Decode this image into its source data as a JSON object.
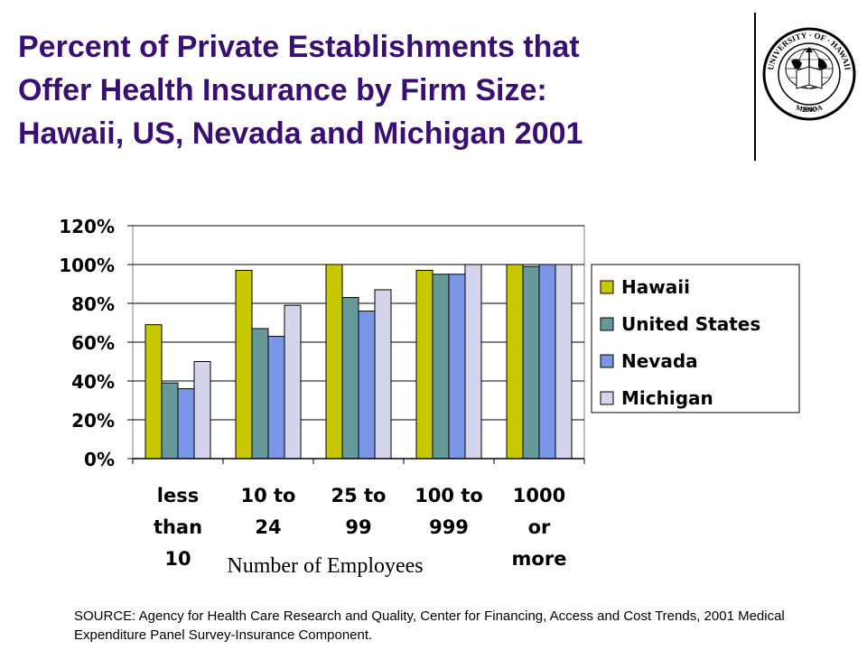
{
  "title": {
    "line1": "Percent of Private Establishments that",
    "line2": "Offer Health Insurance by Firm Size:",
    "line3": "Hawaii, US, Nevada and Michigan 2001"
  },
  "seal": {
    "top_text": "UNIVERSITY · OF · HAWAII",
    "year": "1907",
    "bottom_text": "MANOA",
    "book_text": "MAMA LAMA"
  },
  "chart_data": {
    "type": "bar",
    "categories": [
      [
        "less",
        "than",
        "10"
      ],
      [
        "10 to",
        "24"
      ],
      [
        "25 to",
        "99"
      ],
      [
        "100 to",
        "999"
      ],
      [
        "1000",
        "or",
        "more"
      ]
    ],
    "xlabel": "Number of Employees",
    "ylabel": "",
    "ylim": [
      0,
      120
    ],
    "yticks": [
      0,
      20,
      40,
      60,
      80,
      100,
      120
    ],
    "ytick_labels": [
      "0%",
      "20%",
      "40%",
      "60%",
      "80%",
      "100%",
      "120%"
    ],
    "legend_position": "right",
    "series": [
      {
        "name": "Hawaii",
        "color": "#c8c800",
        "values": [
          69,
          97,
          100,
          97,
          100
        ]
      },
      {
        "name": "United States",
        "color": "#669999",
        "values": [
          39,
          67,
          83,
          95,
          99
        ]
      },
      {
        "name": "Nevada",
        "color": "#7b96e6",
        "values": [
          36,
          63,
          76,
          95,
          100
        ]
      },
      {
        "name": "Michigan",
        "color": "#d4d4ec",
        "values": [
          50,
          79,
          87,
          100,
          100
        ]
      }
    ]
  },
  "source": {
    "text": "SOURCE: Agency for Health Care Research and Quality, Center for Financing, Access and Cost Trends, 2001 Medical Expenditure Panel Survey-Insurance Component."
  }
}
